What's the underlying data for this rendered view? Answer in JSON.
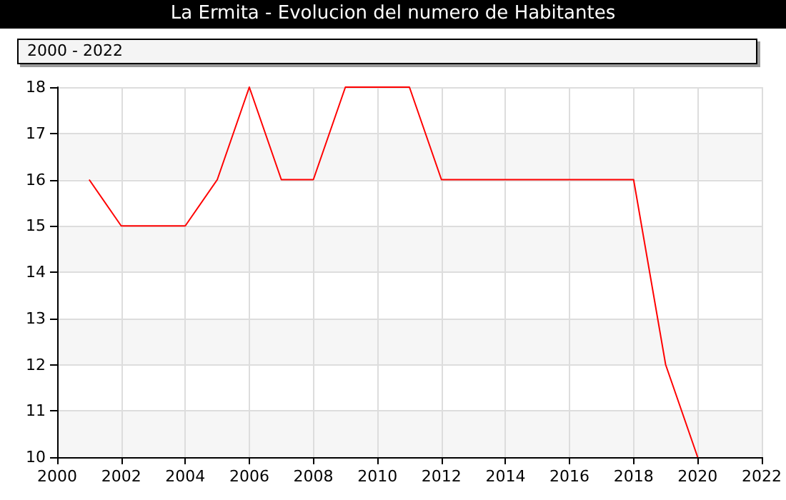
{
  "chart_data": {
    "type": "line",
    "title": "La Ermita - Evolucion del numero de Habitantes",
    "subtitle": "2000 - 2022",
    "x": [
      2001,
      2002,
      2003,
      2004,
      2005,
      2006,
      2007,
      2008,
      2009,
      2010,
      2011,
      2012,
      2013,
      2014,
      2015,
      2016,
      2017,
      2018,
      2019,
      2020
    ],
    "series": [
      {
        "color": "#ff0000",
        "values": [
          16,
          15,
          15,
          15,
          16,
          18,
          16,
          16,
          18,
          18,
          18,
          16,
          16,
          16,
          16,
          16,
          16,
          16,
          12,
          10
        ]
      }
    ],
    "xlim": [
      2000,
      2022
    ],
    "xticks": [
      2000,
      2002,
      2004,
      2006,
      2008,
      2010,
      2012,
      2014,
      2016,
      2018,
      2020,
      2022
    ],
    "ylim": [
      10,
      18
    ],
    "yticks": [
      10,
      11,
      12,
      13,
      14,
      15,
      16,
      17,
      18
    ],
    "grid": true,
    "marker": "none",
    "line_style": "solid"
  }
}
